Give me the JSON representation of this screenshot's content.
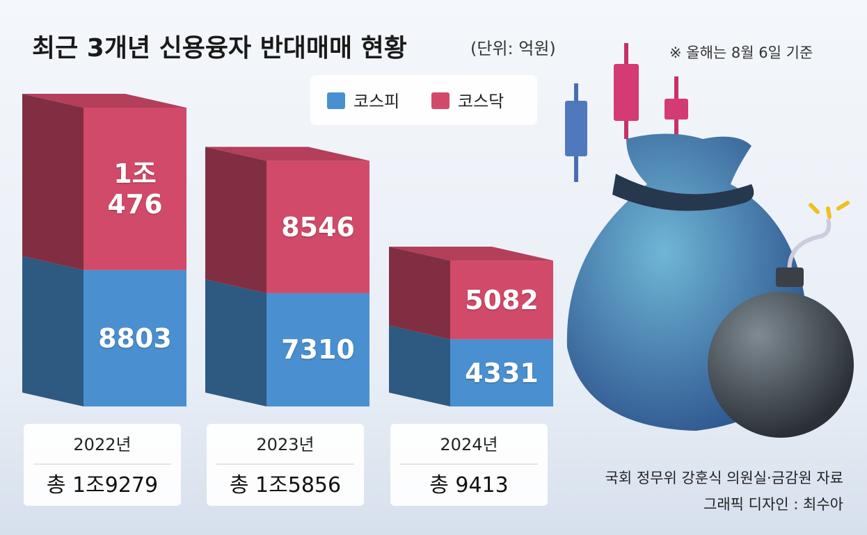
{
  "chart_data": {
    "type": "stacked-bar-3d",
    "title": "최근 3개년 신용융자 반대매매 현황",
    "unit": "(단위: 억원)",
    "note": "※ 올해는 8월 6일 기준",
    "categories": [
      "2022년",
      "2023년",
      "2024년"
    ],
    "series": [
      {
        "name": "코스피",
        "color": "#4a90d0",
        "values": [
          8803,
          7310,
          4331
        ]
      },
      {
        "name": "코스닥",
        "color": "#d24a6a",
        "values": [
          10476,
          8546,
          5082
        ],
        "value_labels": [
          "1조\n476",
          "8546",
          "5082"
        ]
      }
    ],
    "totals": [
      19279,
      15856,
      9413
    ],
    "total_labels": [
      "총 1조9279",
      "총 1조5856",
      "총 9413"
    ],
    "source": "국회 정무위 강훈식 의원실·금감원 자료",
    "credit": "그래픽 디자인 : 최수아"
  }
}
